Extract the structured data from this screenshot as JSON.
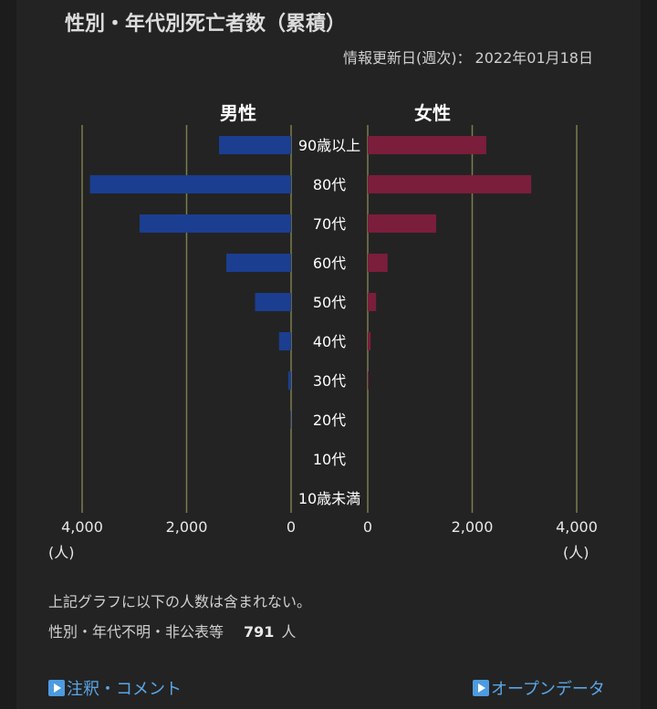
{
  "title": "性別・年代別死亡者数（累積）",
  "update": {
    "label": "情報更新日(週次)：",
    "date": "2022年01月18日"
  },
  "chart_data": {
    "type": "bar",
    "layout": "population-pyramid",
    "categories": [
      "90歳以上",
      "80代",
      "70代",
      "60代",
      "50代",
      "40代",
      "30代",
      "20代",
      "10代",
      "10歳未満"
    ],
    "series": [
      {
        "name": "男性",
        "color": "#1b3e91",
        "values": [
          1380,
          3850,
          2900,
          1240,
          690,
          230,
          55,
          12,
          0,
          0
        ]
      },
      {
        "name": "女性",
        "color": "#7a1e3c",
        "values": [
          2270,
          3130,
          1310,
          380,
          160,
          55,
          15,
          0,
          0,
          0
        ]
      }
    ],
    "xlim": [
      0,
      4000
    ],
    "xticks": [
      "4,000",
      "2,000",
      "0"
    ],
    "xticks_right": [
      "0",
      "2,000",
      "4,000"
    ],
    "unit": "(人)",
    "grid": true,
    "grid_color": "#7d7d50"
  },
  "note": "上記グラフに以下の人数は含まれない。",
  "excluded": {
    "label": "性別・年代不明・非公表等",
    "value": "791",
    "unit": "人"
  },
  "links": {
    "notes": "注釈・コメント",
    "open_data": "オープンデータ"
  }
}
